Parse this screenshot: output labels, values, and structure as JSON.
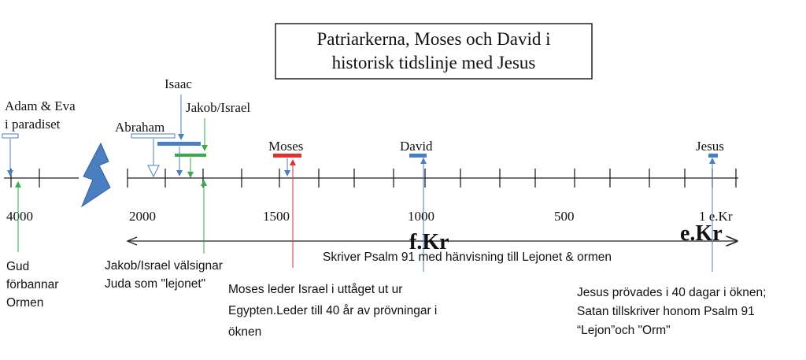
{
  "title": {
    "lines": [
      "Patriarkerna, Moses och David i",
      "historisk tidslinje med Jesus"
    ]
  },
  "axis": {
    "labels": [
      "4000",
      "2000",
      "1500",
      "1000",
      "500",
      "1 e.Kr"
    ],
    "eras": [
      "f.Kr",
      "e.Kr"
    ]
  },
  "events": [
    {
      "label": [
        "Adam & Eva",
        "i paradiset"
      ]
    },
    {
      "label": [
        "Abraham"
      ]
    },
    {
      "label": [
        "Isaac"
      ]
    },
    {
      "label": [
        "Jakob/Israel"
      ]
    },
    {
      "label": [
        "Moses"
      ]
    },
    {
      "label": [
        "David"
      ]
    },
    {
      "label": [
        "Jesus"
      ]
    }
  ],
  "notes": [
    {
      "lines": [
        "Gud",
        "förbannar",
        "Ormen"
      ]
    },
    {
      "lines": [
        "Jakob/Israel välsignar",
        "Juda som \"lejonet\""
      ]
    },
    {
      "lines": [
        "Moses leder Israel i uttåget ut ur",
        "Egypten.Leder till 40 år av prövningar i",
        "öknen"
      ]
    },
    {
      "lines": [
        "Skriver Psalm 91 med hänvisning till Lejonet & ormen"
      ]
    },
    {
      "lines": [
        "Jesus prövades i 40 dagar i öknen;",
        "Satan tillskriver honom Psalm 91",
        "“Lejon”och \"Orm\""
      ]
    }
  ]
}
